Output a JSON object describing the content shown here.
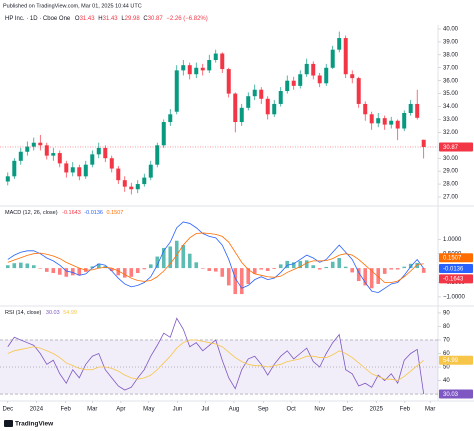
{
  "published": "Published on TradingView.com, Mar 01, 2025 10:44 UTC",
  "logo": "TradingView",
  "chart_data": [
    {
      "type": "candlestick",
      "title": "HP Inc. · 1D · Cboe One",
      "ohlc_labels": [
        "O",
        "H",
        "L",
        "C"
      ],
      "change_label": "−2.26 (−6.82%)",
      "open": [
        28.2,
        28.6,
        29.8,
        30.5,
        30.9,
        31.2,
        31.0,
        30.2,
        30.4,
        29.6,
        28.9,
        29.3,
        28.6,
        29.5,
        30.3,
        30.8,
        30.0,
        29.2,
        28.3,
        27.8,
        27.6,
        28.0,
        28.5,
        29.5,
        31.0,
        32.8,
        33.6,
        36.8,
        37.2,
        36.5,
        37.0,
        36.8,
        37.6,
        38.1,
        36.9,
        35.0,
        32.8,
        33.9,
        34.8,
        35.3,
        34.6,
        33.4,
        34.2,
        35.2,
        36.0,
        35.6,
        36.5,
        37.3,
        36.4,
        35.8,
        37.0,
        38.4,
        39.3,
        36.5,
        36.2,
        34.2,
        33.4,
        32.7,
        33.1,
        32.6,
        32.9,
        32.3,
        33.5,
        34.2,
        31.43
      ],
      "high": [
        28.9,
        30.0,
        30.8,
        31.3,
        31.6,
        31.8,
        31.2,
        30.8,
        30.6,
        29.8,
        29.7,
        29.5,
        29.8,
        30.6,
        31.2,
        31.0,
        30.2,
        29.4,
        28.6,
        28.1,
        28.3,
        28.8,
        29.8,
        31.2,
        33.0,
        33.8,
        37.2,
        37.6,
        37.4,
        37.4,
        37.3,
        38.0,
        38.4,
        38.2,
        37.0,
        35.1,
        34.2,
        35.1,
        35.7,
        35.5,
        34.8,
        34.5,
        35.5,
        36.4,
        36.3,
        36.8,
        37.7,
        37.5,
        36.6,
        37.3,
        38.7,
        39.8,
        39.5,
        36.8,
        36.3,
        34.4,
        33.6,
        33.5,
        33.3,
        33.2,
        33.0,
        33.7,
        34.5,
        35.3,
        31.43
      ],
      "low": [
        27.9,
        28.4,
        29.5,
        30.2,
        30.6,
        30.6,
        29.9,
        29.8,
        29.3,
        28.5,
        28.6,
        28.3,
        28.4,
        29.3,
        30.0,
        29.7,
        28.9,
        28.0,
        27.4,
        27.2,
        27.3,
        27.8,
        28.3,
        29.3,
        30.8,
        32.5,
        33.4,
        36.4,
        36.1,
        36.2,
        36.4,
        36.6,
        37.4,
        36.6,
        34.7,
        32.0,
        32.5,
        33.7,
        34.5,
        34.2,
        33.0,
        33.2,
        34.0,
        35.0,
        35.3,
        35.4,
        36.3,
        36.1,
        35.5,
        35.6,
        36.9,
        38.2,
        36.2,
        35.8,
        33.9,
        32.9,
        32.2,
        32.4,
        32.2,
        32.3,
        31.4,
        32.1,
        33.3,
        33.0,
        29.98
      ],
      "close": [
        28.6,
        29.8,
        30.5,
        30.9,
        31.2,
        31.0,
        30.2,
        30.4,
        29.6,
        28.9,
        29.3,
        28.6,
        29.5,
        30.3,
        30.8,
        30.0,
        29.2,
        28.3,
        27.8,
        27.6,
        28.0,
        28.5,
        29.5,
        31.0,
        32.8,
        33.4,
        36.8,
        37.2,
        36.5,
        37.0,
        36.8,
        37.6,
        38.1,
        36.9,
        35.0,
        32.8,
        33.9,
        34.8,
        35.3,
        34.6,
        33.4,
        34.2,
        35.2,
        36.0,
        35.6,
        36.5,
        37.3,
        36.4,
        35.8,
        37.0,
        38.4,
        39.3,
        36.5,
        36.2,
        34.2,
        33.4,
        32.7,
        33.1,
        32.6,
        32.9,
        32.3,
        33.5,
        34.2,
        33.13,
        30.87
      ],
      "up_color": "#089981",
      "down_color": "#f23645",
      "ylim": [
        26.38,
        40.31
      ],
      "yticks": [
        {
          "value": 27,
          "label": "27.00"
        },
        {
          "value": 28,
          "label": "28.00"
        },
        {
          "value": 29,
          "label": "29.00"
        },
        {
          "value": 30,
          "label": "30.00"
        },
        {
          "value": 32,
          "label": "32.00"
        },
        {
          "value": 33,
          "label": "33.00"
        },
        {
          "value": 34,
          "label": "34.00"
        },
        {
          "value": 35,
          "label": "35.00"
        },
        {
          "value": 36,
          "label": "36.00"
        },
        {
          "value": 37,
          "label": "37.00"
        },
        {
          "value": 38,
          "label": "38.00"
        },
        {
          "value": 39,
          "label": "39.00"
        },
        {
          "value": 40,
          "label": "40.00"
        }
      ]
    },
    {
      "type": "macd",
      "title": "MACD (12, 26, close)",
      "series": [
        {
          "name": "Histogram",
          "color": "#f23645",
          "positive_color": "#26a69a",
          "negative_color": "#ff5252",
          "values": [
            0.1,
            0.17,
            0.19,
            0.16,
            0.1,
            -0.02,
            -0.13,
            -0.17,
            -0.23,
            -0.3,
            -0.25,
            -0.25,
            -0.13,
            0.06,
            0.15,
            0.07,
            -0.1,
            -0.25,
            -0.33,
            -0.3,
            -0.17,
            -0.04,
            0.13,
            0.4,
            0.7,
            0.75,
            0.95,
            0.8,
            0.5,
            0.2,
            -0.02,
            -0.1,
            -0.12,
            -0.3,
            -0.6,
            -0.9,
            -0.9,
            -0.55,
            -0.2,
            -0.05,
            -0.1,
            -0.03,
            0.13,
            0.25,
            0.2,
            0.25,
            0.27,
            0.1,
            -0.05,
            0.04,
            0.22,
            0.35,
            0.05,
            -0.15,
            -0.45,
            -0.6,
            -0.7,
            -0.55,
            -0.2,
            -0.05,
            -0.05,
            0.05,
            0.15,
            0.18,
            -0.1643
          ]
        },
        {
          "name": "MACD",
          "color": "#2962ff",
          "values": [
            0.3,
            0.45,
            0.55,
            0.6,
            0.6,
            0.5,
            0.35,
            0.25,
            0.1,
            -0.1,
            -0.15,
            -0.25,
            -0.2,
            0.0,
            0.15,
            0.1,
            -0.1,
            -0.35,
            -0.55,
            -0.65,
            -0.6,
            -0.5,
            -0.3,
            0.1,
            0.6,
            0.9,
            1.4,
            1.6,
            1.55,
            1.4,
            1.2,
            1.1,
            1.05,
            0.8,
            0.3,
            -0.35,
            -0.7,
            -0.6,
            -0.4,
            -0.3,
            -0.4,
            -0.35,
            -0.15,
            0.1,
            0.15,
            0.3,
            0.45,
            0.35,
            0.2,
            0.3,
            0.55,
            0.8,
            0.55,
            0.3,
            -0.15,
            -0.5,
            -0.8,
            -0.85,
            -0.7,
            -0.55,
            -0.5,
            -0.25,
            0.05,
            0.3,
            -0.0136
          ]
        },
        {
          "name": "Signal",
          "color": "#ff6d00",
          "values": [
            0.2,
            0.28,
            0.36,
            0.44,
            0.5,
            0.52,
            0.48,
            0.42,
            0.33,
            0.2,
            0.1,
            0.0,
            -0.07,
            -0.06,
            0.0,
            0.03,
            0.0,
            -0.1,
            -0.22,
            -0.35,
            -0.43,
            -0.46,
            -0.43,
            -0.3,
            -0.1,
            0.15,
            0.45,
            0.8,
            1.05,
            1.2,
            1.22,
            1.2,
            1.17,
            1.1,
            0.9,
            0.55,
            0.2,
            -0.05,
            -0.2,
            -0.25,
            -0.3,
            -0.32,
            -0.28,
            -0.15,
            -0.05,
            0.05,
            0.18,
            0.25,
            0.25,
            0.26,
            0.33,
            0.45,
            0.5,
            0.45,
            0.3,
            0.1,
            -0.1,
            -0.3,
            -0.5,
            -0.5,
            -0.45,
            -0.3,
            -0.1,
            0.12,
            0.1507
          ]
        }
      ],
      "ylim": [
        -1.28,
        2.12
      ],
      "yticks": [
        {
          "value": 1,
          "label": "1.0000"
        },
        {
          "value": 0.5,
          "label": "0.5000"
        },
        {
          "value": -0.5,
          "label": "−0.5000"
        },
        {
          "value": -1,
          "label": "−1.0000"
        }
      ]
    },
    {
      "type": "rsi",
      "title": "RSI (14, close)",
      "series": [
        {
          "name": "RSI",
          "color": "#7e57c2",
          "values": [
            65,
            72,
            70,
            68,
            66,
            60,
            52,
            55,
            45,
            38,
            48,
            42,
            52,
            58,
            60,
            48,
            42,
            36,
            33,
            35,
            42,
            48,
            58,
            66,
            75,
            72,
            86,
            78,
            65,
            68,
            62,
            66,
            70,
            55,
            42,
            34,
            48,
            56,
            58,
            52,
            44,
            52,
            58,
            62,
            56,
            60,
            64,
            54,
            50,
            60,
            68,
            74,
            48,
            45,
            36,
            38,
            35,
            44,
            40,
            45,
            38,
            55,
            60,
            63,
            30.03
          ]
        },
        {
          "name": "RSI-based MA",
          "color": "#f7c548",
          "values": [
            60,
            62,
            63,
            64,
            65,
            64,
            62,
            60,
            57,
            53,
            51,
            49,
            48,
            48,
            50,
            50,
            49,
            47,
            44,
            42,
            41,
            42,
            44,
            48,
            53,
            58,
            64,
            68,
            70,
            70,
            69,
            68,
            67,
            65,
            61,
            57,
            54,
            52,
            51,
            51,
            50,
            51,
            52,
            54,
            55,
            56,
            58,
            58,
            57,
            57,
            59,
            62,
            60,
            57,
            53,
            49,
            45,
            43,
            41,
            41,
            40,
            43,
            47,
            51,
            54.99
          ]
        }
      ],
      "bands": {
        "upper": 70,
        "middle": 50,
        "lower": 30,
        "color": "#7e57c2"
      },
      "ylim": [
        25.6,
        94.4
      ],
      "yticks": [
        40,
        50,
        60,
        70,
        80,
        90
      ],
      "xlim": [
        -1.2,
        66.2
      ],
      "xticks": [
        {
          "value": 0,
          "label": "Dec"
        },
        {
          "value": 4.4,
          "label": "2024"
        },
        {
          "value": 8.9,
          "label": "Feb"
        },
        {
          "value": 13,
          "label": "Mar"
        },
        {
          "value": 17.4,
          "label": "Apr"
        },
        {
          "value": 21.7,
          "label": "May"
        },
        {
          "value": 26.1,
          "label": "Jun"
        },
        {
          "value": 30.4,
          "label": "Jul"
        },
        {
          "value": 34.8,
          "label": "Aug"
        },
        {
          "value": 39.3,
          "label": "Sep"
        },
        {
          "value": 43.6,
          "label": "Oct"
        },
        {
          "value": 48,
          "label": "Nov"
        },
        {
          "value": 52.3,
          "label": "Dec"
        },
        {
          "value": 56.7,
          "label": "2025"
        },
        {
          "value": 61.1,
          "label": "Feb"
        },
        {
          "value": 65,
          "label": "Mar"
        }
      ]
    }
  ]
}
